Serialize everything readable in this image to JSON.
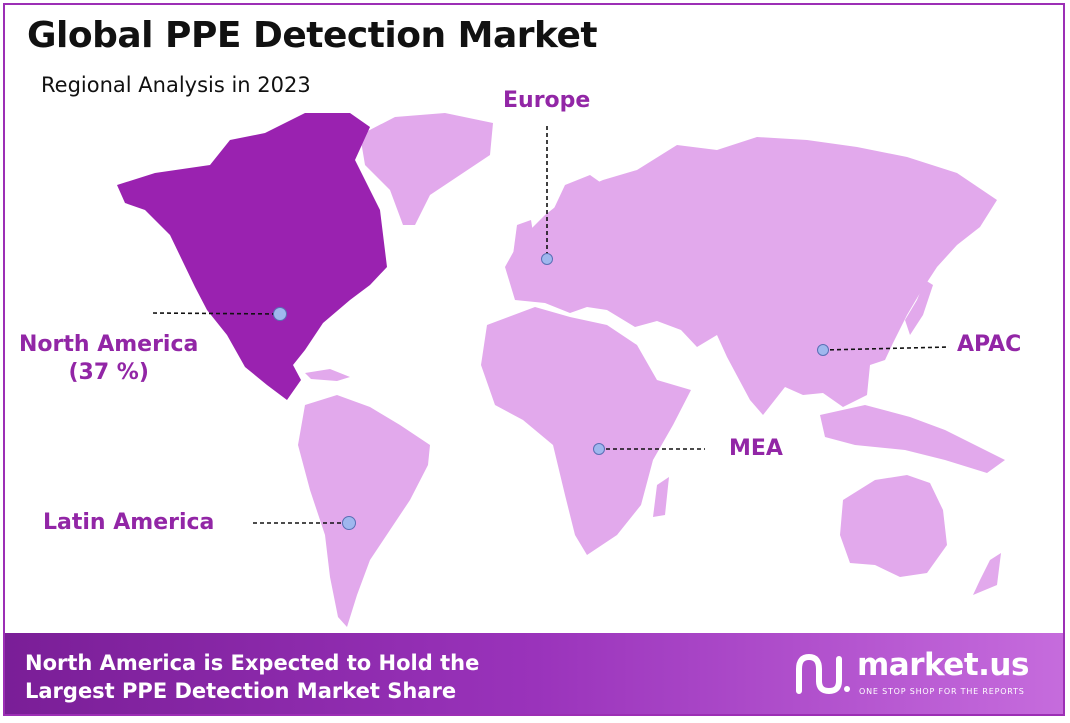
{
  "title": "Global PPE Detection Market",
  "subtitle": "Regional Analysis in 2023",
  "regions": {
    "north_america": {
      "name": "North America",
      "share": "(37 %)"
    },
    "europe": {
      "name": "Europe"
    },
    "apac": {
      "name": "APAC"
    },
    "mea": {
      "name": "MEA"
    },
    "latin_america": {
      "name": "Latin America"
    }
  },
  "footer": {
    "line1": "North America is Expected to Hold the",
    "line2": "Largest PPE Detection Market Share"
  },
  "logo": {
    "name": "market.us",
    "tagline": "ONE STOP SHOP FOR THE REPORTS"
  },
  "colors": {
    "highlight": "#9a22b0",
    "land": "#e2a9ec",
    "accent": "#9226a6",
    "marker": "#9fb7ee"
  }
}
